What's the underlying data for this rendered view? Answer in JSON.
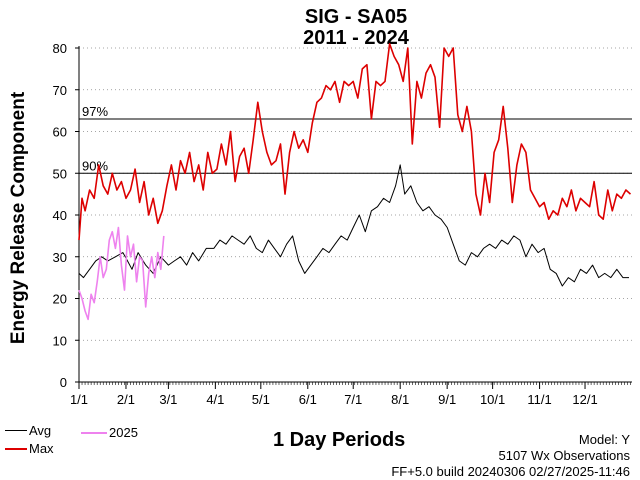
{
  "chart_data": {
    "type": "line",
    "title": "SIG - SA05",
    "subtitle": "2011 - 2024",
    "xlabel": "1 Day Periods",
    "ylabel": "Energy Release Component",
    "ylim": [
      0,
      80
    ],
    "yticks": [
      0,
      10,
      20,
      30,
      40,
      50,
      60,
      70,
      80
    ],
    "xlim": [
      1,
      366
    ],
    "xticks": [
      {
        "day": 1,
        "label": "1/1"
      },
      {
        "day": 32,
        "label": "2/1"
      },
      {
        "day": 60,
        "label": "3/1"
      },
      {
        "day": 91,
        "label": "4/1"
      },
      {
        "day": 121,
        "label": "5/1"
      },
      {
        "day": 152,
        "label": "6/1"
      },
      {
        "day": 182,
        "label": "7/1"
      },
      {
        "day": 213,
        "label": "8/1"
      },
      {
        "day": 244,
        "label": "9/1"
      },
      {
        "day": 274,
        "label": "10/1"
      },
      {
        "day": 305,
        "label": "11/1"
      },
      {
        "day": 335,
        "label": "12/1"
      }
    ],
    "reference_lines": [
      {
        "label": "97%",
        "value": 63
      },
      {
        "label": "90%",
        "value": 50
      }
    ],
    "grid": "horizontal dashed",
    "legend_position": "bottom-left",
    "series": [
      {
        "name": "Avg",
        "color": "#000000",
        "x": [
          1,
          4,
          8,
          12,
          16,
          20,
          25,
          30,
          33,
          36,
          40,
          45,
          50,
          55,
          60,
          64,
          68,
          72,
          76,
          80,
          85,
          90,
          94,
          98,
          102,
          106,
          110,
          114,
          118,
          122,
          126,
          130,
          134,
          138,
          142,
          146,
          150,
          154,
          158,
          162,
          166,
          170,
          174,
          178,
          182,
          186,
          190,
          194,
          198,
          202,
          206,
          210,
          213,
          216,
          220,
          224,
          228,
          232,
          236,
          240,
          244,
          248,
          252,
          256,
          260,
          264,
          268,
          272,
          276,
          280,
          284,
          288,
          292,
          296,
          300,
          304,
          308,
          312,
          316,
          320,
          324,
          328,
          332,
          336,
          340,
          344,
          348,
          352,
          356,
          360,
          364
        ],
        "y": [
          26,
          25,
          27,
          29,
          30,
          29,
          30,
          31,
          29,
          27,
          31,
          28,
          26,
          30,
          28,
          29,
          30,
          28,
          31,
          29,
          32,
          32,
          34,
          33,
          35,
          34,
          33,
          35,
          32,
          31,
          34,
          32,
          30,
          33,
          35,
          29,
          26,
          28,
          30,
          32,
          31,
          33,
          35,
          34,
          37,
          40,
          36,
          41,
          42,
          44,
          43,
          47,
          52,
          45,
          47,
          43,
          41,
          42,
          40,
          39,
          37,
          33,
          29,
          28,
          31,
          30,
          32,
          33,
          32,
          34,
          33,
          35,
          34,
          30,
          33,
          31,
          32,
          27,
          26,
          23,
          25,
          24,
          27,
          26,
          28,
          25,
          26,
          25,
          27,
          25,
          25
        ]
      },
      {
        "name": "Max",
        "color": "#dd0000",
        "x": [
          1,
          3,
          5,
          8,
          11,
          14,
          17,
          20,
          23,
          26,
          29,
          32,
          35,
          38,
          41,
          44,
          47,
          50,
          53,
          56,
          59,
          62,
          65,
          68,
          71,
          74,
          77,
          80,
          83,
          86,
          89,
          92,
          95,
          98,
          101,
          104,
          107,
          110,
          113,
          116,
          119,
          122,
          125,
          128,
          131,
          134,
          137,
          140,
          143,
          146,
          149,
          152,
          155,
          158,
          161,
          164,
          167,
          170,
          173,
          176,
          179,
          182,
          185,
          188,
          191,
          194,
          197,
          200,
          203,
          206,
          209,
          212,
          215,
          218,
          221,
          224,
          227,
          230,
          233,
          236,
          239,
          242,
          245,
          248,
          251,
          254,
          257,
          260,
          263,
          266,
          269,
          272,
          275,
          278,
          281,
          284,
          287,
          290,
          293,
          296,
          299,
          302,
          305,
          308,
          311,
          314,
          317,
          320,
          323,
          326,
          329,
          332,
          335,
          338,
          341,
          344,
          347,
          350,
          353,
          356,
          359,
          362,
          365
        ],
        "y": [
          34,
          44,
          41,
          46,
          44,
          52,
          47,
          45,
          50,
          46,
          48,
          44,
          46,
          51,
          43,
          48,
          40,
          44,
          38,
          41,
          47,
          52,
          46,
          53,
          50,
          55,
          48,
          52,
          46,
          55,
          50,
          51,
          57,
          52,
          60,
          48,
          54,
          56,
          50,
          58,
          67,
          60,
          55,
          52,
          53,
          57,
          45,
          55,
          60,
          56,
          58,
          55,
          62,
          67,
          68,
          71,
          70,
          72,
          67,
          72,
          71,
          72,
          68,
          75,
          76,
          63,
          72,
          71,
          72,
          81,
          78,
          76,
          72,
          80,
          57,
          72,
          68,
          74,
          76,
          73,
          61,
          80,
          78,
          80,
          64,
          60,
          66,
          60,
          45,
          40,
          50,
          43,
          55,
          58,
          66,
          56,
          43,
          52,
          57,
          55,
          46,
          44,
          42,
          43,
          39,
          41,
          40,
          44,
          42,
          46,
          41,
          44,
          43,
          42,
          48,
          40,
          39,
          46,
          41,
          45,
          44,
          46,
          45
        ]
      },
      {
        "name": "2025",
        "color": "#ee82ee",
        "x": [
          1,
          3,
          5,
          7,
          9,
          11,
          13,
          15,
          17,
          19,
          21,
          23,
          25,
          27,
          29,
          31,
          33,
          35,
          37,
          39,
          41,
          43,
          45,
          47,
          49,
          51,
          53,
          55,
          57
        ],
        "y": [
          22,
          20,
          17,
          15,
          21,
          19,
          24,
          30,
          25,
          27,
          34,
          36,
          32,
          37,
          28,
          22,
          35,
          30,
          33,
          24,
          30,
          29,
          18,
          26,
          30,
          25,
          31,
          27,
          35
        ]
      }
    ]
  },
  "footer": {
    "model": "Model: Y",
    "observations": "5107 Wx Observations",
    "build": "FF+5.0 build 20240306 02/27/2025-11:46"
  }
}
